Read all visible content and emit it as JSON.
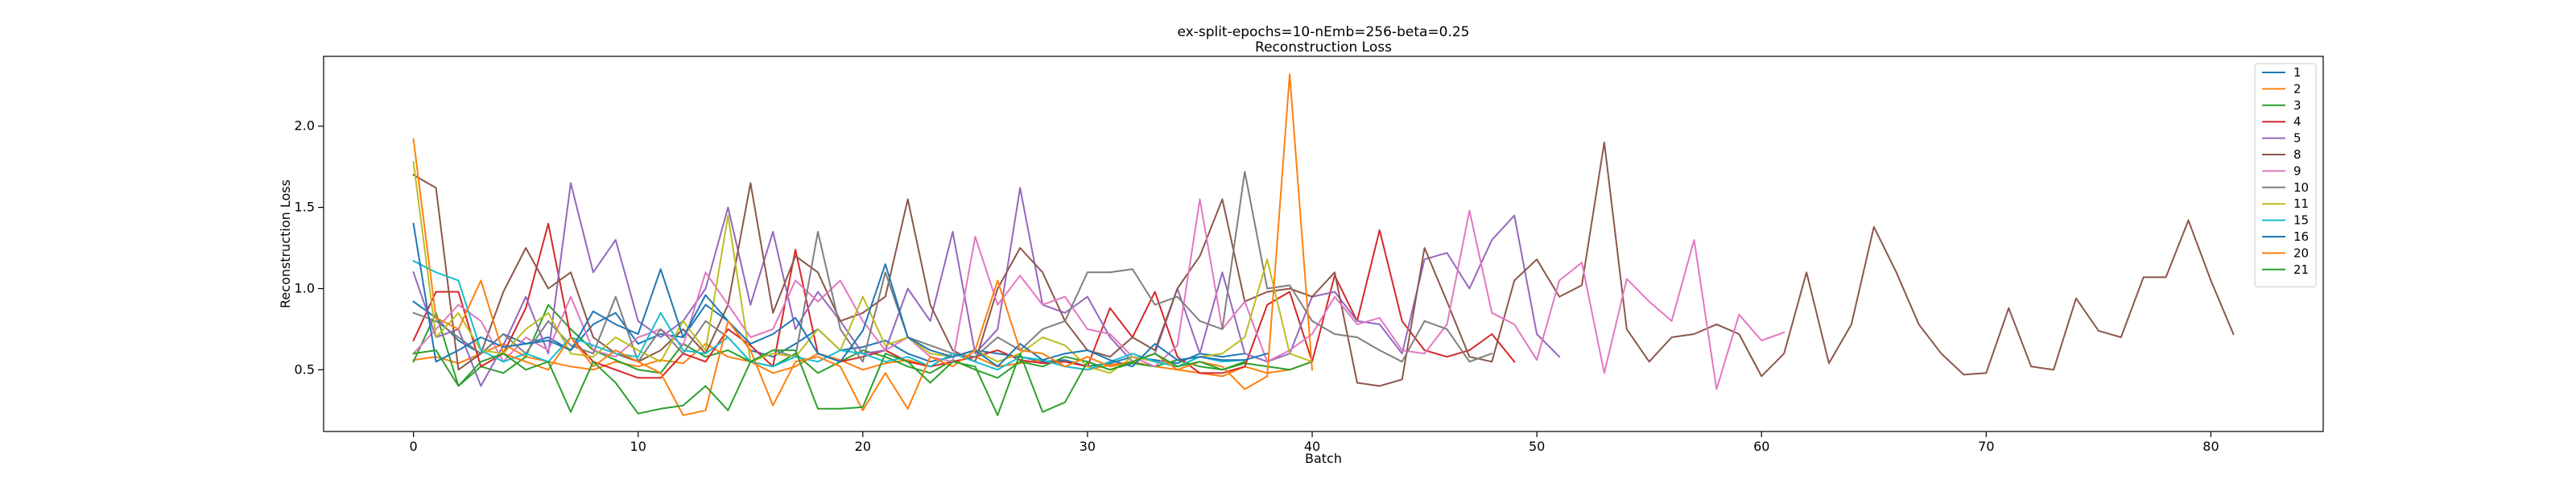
{
  "chart_data": {
    "type": "line",
    "title": "ex-split-epochs=10-nEmb=256-beta=0.25",
    "subtitle": "Reconstruction Loss",
    "xlabel": "Batch",
    "ylabel": "Reconstruction Loss",
    "xlim": [
      -4,
      85
    ],
    "ylim": [
      0.12,
      2.43
    ],
    "x_ticks": [
      0,
      10,
      20,
      30,
      40,
      50,
      60,
      70,
      80
    ],
    "y_ticks": [
      0.5,
      1.0,
      1.5,
      2.0
    ],
    "x_tick_labels": [
      "0",
      "10",
      "20",
      "30",
      "40",
      "50",
      "60",
      "70",
      "80"
    ],
    "y_tick_labels": [
      "0.5",
      "1.0",
      "1.5",
      "2.0"
    ],
    "legend_position": "top-right",
    "grid": false,
    "series": [
      {
        "name": "1",
        "color": "#1f77b4",
        "values": [
          0.92,
          0.82,
          0.68,
          0.6,
          0.72,
          0.66,
          0.7,
          0.62,
          0.78,
          0.85,
          0.66,
          0.72,
          0.7,
          0.9,
          0.8,
          0.62,
          0.58,
          0.66,
          0.75,
          0.62,
          0.64,
          0.68,
          0.6,
          0.55,
          0.58,
          0.62,
          0.6,
          0.58,
          0.55,
          0.56,
          0.52,
          0.54,
          0.58,
          0.56,
          0.54,
          0.6,
          0.58,
          0.6
        ]
      },
      {
        "name": "2",
        "color": "#ff7f0e",
        "values": [
          0.56,
          0.58,
          0.54,
          0.6,
          0.66,
          0.58,
          0.55,
          0.52,
          0.5,
          0.55,
          0.52,
          0.56,
          0.54,
          0.66,
          0.58,
          0.55,
          0.48,
          0.52,
          0.6,
          0.56,
          0.5,
          0.54,
          0.56,
          0.52,
          0.55,
          0.58,
          0.52,
          0.54,
          0.56,
          0.52,
          0.5,
          0.53,
          0.55,
          0.52,
          0.5,
          0.48,
          0.46,
          0.52,
          0.48,
          0.5,
          0.55
        ]
      },
      {
        "name": "3",
        "color": "#2ca02c",
        "values": [
          0.55,
          0.85,
          0.4,
          0.52,
          0.48,
          0.58,
          0.9,
          0.75,
          0.62,
          0.56,
          0.5,
          0.48,
          0.66,
          0.58,
          0.62,
          0.55,
          0.52,
          0.6,
          0.48,
          0.55,
          0.62,
          0.58,
          0.52,
          0.48,
          0.56,
          0.5,
          0.45,
          0.55,
          0.52,
          0.58,
          0.55,
          0.5,
          0.54,
          0.52,
          0.56,
          0.52,
          0.5,
          0.54,
          0.52,
          0.5,
          0.55
        ]
      },
      {
        "name": "4",
        "color": "#d62728",
        "values": [
          0.68,
          0.98,
          0.98,
          0.52,
          0.6,
          0.88,
          1.4,
          0.7,
          0.55,
          0.5,
          0.45,
          0.45,
          0.6,
          0.55,
          0.75,
          0.65,
          0.52,
          1.24,
          0.6,
          0.55,
          0.58,
          0.62,
          0.55,
          0.52,
          0.55,
          0.58,
          0.62,
          0.56,
          0.54,
          0.55,
          0.52,
          0.88,
          0.7,
          0.98,
          0.58,
          0.48,
          0.48,
          0.52,
          0.9,
          0.98,
          0.55,
          1.08,
          0.8,
          1.36,
          0.8,
          0.62,
          0.58,
          0.62,
          0.72,
          0.55
        ]
      },
      {
        "name": "5",
        "color": "#9467bd",
        "values": [
          1.1,
          0.7,
          0.75,
          0.4,
          0.65,
          0.95,
          0.6,
          1.65,
          1.1,
          1.3,
          0.8,
          0.7,
          0.8,
          1.0,
          1.5,
          0.9,
          1.35,
          0.75,
          0.98,
          0.8,
          0.6,
          0.62,
          1.0,
          0.8,
          1.35,
          0.6,
          0.75,
          1.62,
          0.9,
          0.85,
          0.95,
          0.7,
          0.55,
          0.6,
          1.0,
          0.6,
          1.1,
          0.6,
          0.55,
          0.6,
          0.95,
          0.98,
          0.8,
          0.78,
          0.6,
          1.18,
          1.22,
          1.0,
          1.3,
          1.45,
          0.72,
          0.58
        ]
      },
      {
        "name": "8",
        "color": "#8c564b",
        "values": [
          1.7,
          1.62,
          0.5,
          0.6,
          0.98,
          1.25,
          1.0,
          1.1,
          0.7,
          0.6,
          0.55,
          0.62,
          0.75,
          0.6,
          0.9,
          1.65,
          0.85,
          1.2,
          1.1,
          0.8,
          0.85,
          0.95,
          1.55,
          0.9,
          0.62,
          0.55,
          1.0,
          1.25,
          1.1,
          0.8,
          0.62,
          0.58,
          0.7,
          0.62,
          1.0,
          1.2,
          1.55,
          0.92,
          0.98,
          1.0,
          0.95,
          1.1,
          0.42,
          0.4,
          0.44,
          1.25,
          0.92,
          0.58,
          0.55,
          1.05,
          1.18,
          0.95,
          1.02,
          1.9,
          0.75,
          0.55,
          0.7,
          0.72,
          0.78,
          0.72,
          0.46,
          0.6,
          1.1,
          0.54,
          0.78,
          1.38,
          1.1,
          0.78,
          0.6,
          0.47,
          0.48,
          0.88,
          0.52,
          0.5,
          0.94,
          0.74,
          0.7,
          1.07,
          1.07,
          1.42,
          1.05,
          0.72
        ]
      },
      {
        "name": "9",
        "color": "#e377c2",
        "values": [
          0.6,
          0.75,
          0.9,
          0.8,
          0.55,
          0.7,
          0.62,
          0.95,
          0.62,
          0.58,
          0.7,
          0.75,
          0.65,
          1.1,
          0.9,
          0.7,
          0.75,
          1.05,
          0.92,
          1.05,
          0.8,
          0.62,
          0.7,
          0.58,
          0.55,
          1.32,
          0.9,
          1.08,
          0.9,
          0.95,
          0.75,
          0.72,
          0.58,
          0.52,
          0.65,
          1.55,
          0.75,
          0.92,
          0.55,
          0.62,
          0.72,
          0.95,
          0.78,
          0.82,
          0.62,
          0.6,
          0.78,
          1.48,
          0.85,
          0.78,
          0.56,
          1.05,
          1.16,
          0.48,
          1.06,
          0.92,
          0.8,
          1.3,
          0.38,
          0.84,
          0.68,
          0.73
        ]
      },
      {
        "name": "10",
        "color": "#7f7f7f",
        "values": [
          0.85,
          0.8,
          0.7,
          0.6,
          0.72,
          0.6,
          0.8,
          0.65,
          0.6,
          0.95,
          0.55,
          0.75,
          0.6,
          0.8,
          0.7,
          0.55,
          0.62,
          0.58,
          1.35,
          0.75,
          0.55,
          1.1,
          0.7,
          0.65,
          0.6,
          0.58,
          0.7,
          0.62,
          0.75,
          0.8,
          1.1,
          1.1,
          1.12,
          0.9,
          0.95,
          0.8,
          0.75,
          1.72,
          1.0,
          1.02,
          0.8,
          0.72,
          0.7,
          0.62,
          0.55,
          0.8,
          0.75,
          0.55,
          0.6
        ]
      },
      {
        "name": "11",
        "color": "#bcbd22",
        "values": [
          1.78,
          0.7,
          0.85,
          0.62,
          0.6,
          0.75,
          0.85,
          0.6,
          0.58,
          0.7,
          0.62,
          0.55,
          0.8,
          0.62,
          1.45,
          0.55,
          0.6,
          0.58,
          0.75,
          0.62,
          0.95,
          0.65,
          0.7,
          0.6,
          0.58,
          0.62,
          0.55,
          0.6,
          0.7,
          0.65,
          0.52,
          0.48,
          0.58,
          0.55,
          0.52,
          0.58,
          0.6,
          0.7,
          1.18,
          0.6,
          0.55
        ]
      },
      {
        "name": "15",
        "color": "#17becf",
        "values": [
          1.17,
          1.1,
          1.05,
          0.62,
          0.55,
          0.6,
          0.55,
          0.7,
          0.65,
          0.6,
          0.58,
          0.85,
          0.62,
          0.6,
          0.7,
          0.55,
          0.52,
          0.58,
          0.55,
          0.62,
          0.6,
          0.55,
          0.58,
          0.52,
          0.6,
          0.55,
          0.5,
          0.58,
          0.56,
          0.52,
          0.5,
          0.55,
          0.6,
          0.55,
          0.52,
          0.58,
          0.55,
          0.56
        ]
      },
      {
        "name": "16",
        "color": "#1f77b4",
        "values": [
          1.4,
          0.55,
          0.62,
          0.7,
          0.64,
          0.66,
          0.68,
          0.62,
          0.86,
          0.78,
          0.72,
          1.12,
          0.7,
          0.96,
          0.8,
          0.66,
          0.72,
          0.82,
          0.6,
          0.55,
          0.74,
          1.15,
          0.7,
          0.62,
          0.58,
          0.62,
          0.52,
          0.66,
          0.56,
          0.6,
          0.62,
          0.56,
          0.52,
          0.66,
          0.56,
          0.58,
          0.56,
          0.56,
          0.6
        ]
      },
      {
        "name": "20",
        "color": "#ff7f0e",
        "values": [
          1.92,
          0.82,
          0.75,
          1.05,
          0.6,
          0.55,
          0.5,
          0.7,
          0.52,
          0.62,
          0.55,
          0.48,
          0.22,
          0.25,
          0.8,
          0.62,
          0.28,
          0.55,
          0.58,
          0.52,
          0.25,
          0.48,
          0.26,
          0.58,
          0.52,
          0.62,
          1.05,
          0.62,
          0.6,
          0.52,
          0.58,
          0.52,
          0.55,
          0.6,
          0.5,
          0.55,
          0.52,
          0.38,
          0.46,
          2.32,
          0.5
        ]
      },
      {
        "name": "21",
        "color": "#2ca02c",
        "values": [
          0.6,
          0.62,
          0.4,
          0.55,
          0.6,
          0.5,
          0.55,
          0.24,
          0.55,
          0.42,
          0.23,
          0.26,
          0.28,
          0.4,
          0.25,
          0.55,
          0.62,
          0.62,
          0.26,
          0.26,
          0.27,
          0.6,
          0.55,
          0.42,
          0.55,
          0.52,
          0.22,
          0.6,
          0.24,
          0.3,
          0.55,
          0.5,
          0.55,
          0.6,
          0.52,
          0.55,
          0.5,
          0.55
        ]
      }
    ]
  }
}
